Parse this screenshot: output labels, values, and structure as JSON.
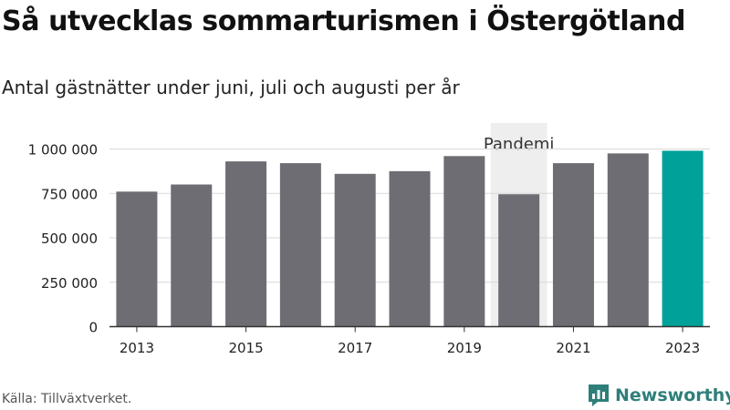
{
  "title": "Så utvecklas sommarturismen i Östergötland",
  "subtitle": "Antal gästnätter under juni, juli och augusti per år",
  "source": "Källa: Tillväxtverket.",
  "brand": {
    "name": "Newsworthy",
    "icon": "bar-chart-logo-icon",
    "color": "#2e7f7a"
  },
  "colors": {
    "bar": "#6e6d73",
    "highlight": "#00a198",
    "shade": "#eeeeee",
    "grid": "#d9d9d9"
  },
  "chart_data": {
    "type": "bar",
    "categories": [
      "2013",
      "2014",
      "2015",
      "2016",
      "2017",
      "2018",
      "2019",
      "2020",
      "2021",
      "2022",
      "2023"
    ],
    "values": [
      760000,
      800000,
      930000,
      920000,
      860000,
      875000,
      960000,
      745000,
      920000,
      975000,
      990000
    ],
    "highlight_category": "2023",
    "ylim": [
      0,
      1000000
    ],
    "yticks": [
      0,
      250000,
      500000,
      750000,
      1000000
    ],
    "ytick_labels": [
      "0",
      "250 000",
      "500 000",
      "750 000",
      "1 000 000"
    ],
    "xtick_labels": [
      "2013",
      "2015",
      "2017",
      "2019",
      "2021",
      "2023"
    ],
    "grid": true,
    "annotation": {
      "label": "Pandemi",
      "category": "2020"
    }
  }
}
